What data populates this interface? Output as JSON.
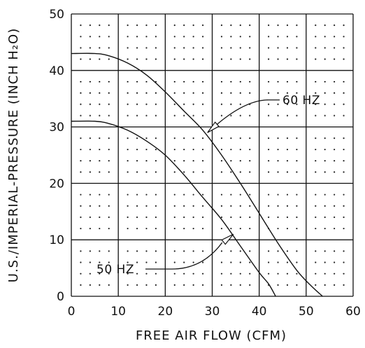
{
  "chart_data": {
    "type": "line",
    "title": "",
    "xlabel": "FREE AIR FLOW (CFM)",
    "ylabel": "U.S./IMPERIAL-PRESSURE (INCH H₂O)",
    "xlim": [
      0,
      60
    ],
    "ylim": [
      0,
      50
    ],
    "x_ticks": [
      0,
      10,
      20,
      30,
      40,
      50,
      60
    ],
    "y_ticks": [
      0,
      10,
      20,
      30,
      40,
      50
    ],
    "grid": true,
    "minor_grid": "dots",
    "series": [
      {
        "name": "60 HZ",
        "points": [
          [
            0,
            43
          ],
          [
            5,
            43
          ],
          [
            8,
            42.6
          ],
          [
            12,
            41.3
          ],
          [
            16,
            39.2
          ],
          [
            20,
            36.2
          ],
          [
            24,
            32.8
          ],
          [
            28,
            29.4
          ],
          [
            32,
            25
          ],
          [
            36,
            20
          ],
          [
            40,
            14.7
          ],
          [
            44,
            9.4
          ],
          [
            48,
            4.6
          ],
          [
            51,
            1.9
          ],
          [
            53.5,
            0
          ]
        ]
      },
      {
        "name": "50 HZ",
        "points": [
          [
            0,
            31
          ],
          [
            5,
            31
          ],
          [
            8,
            30.6
          ],
          [
            12,
            29.4
          ],
          [
            16,
            27.5
          ],
          [
            20,
            25
          ],
          [
            24,
            21.5
          ],
          [
            28,
            17.5
          ],
          [
            32,
            13.6
          ],
          [
            36,
            8.9
          ],
          [
            40,
            4.2
          ],
          [
            42,
            2.2
          ],
          [
            43.5,
            0
          ]
        ]
      }
    ],
    "annotations": [
      {
        "text": "60 HZ",
        "points_to": [
          29,
          29
        ]
      },
      {
        "text": "50 HZ",
        "points_to": [
          34.5,
          11
        ]
      }
    ]
  }
}
